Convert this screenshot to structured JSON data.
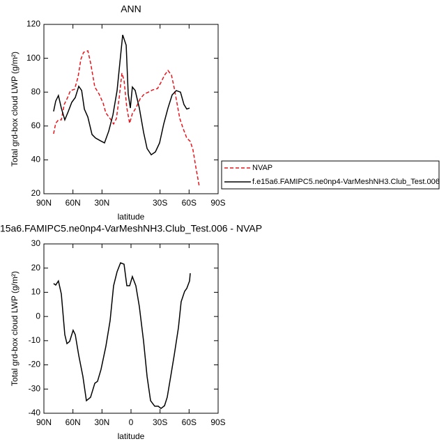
{
  "chart_data": [
    {
      "type": "line",
      "title": "ANN",
      "xlabel": "latitude",
      "ylabel": "Total grd-box cloud LWP (g/m²)",
      "xlim": [
        90,
        -90
      ],
      "ylim": [
        20,
        120
      ],
      "xticks": [
        {
          "value": 90,
          "label": "90N"
        },
        {
          "value": 60,
          "label": "60N"
        },
        {
          "value": 30,
          "label": "30N"
        },
        {
          "value": -30,
          "label": "30S"
        },
        {
          "value": -60,
          "label": "60S"
        },
        {
          "value": -90,
          "label": "90S"
        }
      ],
      "yticks": [
        20,
        40,
        60,
        80,
        100,
        120
      ],
      "legend": "right",
      "series": [
        {
          "name": "NVAP",
          "color": "#e8141c",
          "line_style": "dashed",
          "x": [
            80,
            77.8,
            75,
            72,
            69,
            65.5,
            62.6,
            58.3,
            54.7,
            51.8,
            49,
            44.6,
            41.8,
            37.4,
            33,
            28.8,
            26,
            21.6,
            18,
            15.1,
            12.2,
            9.4,
            7.2,
            4.3,
            1.4,
            -1.4,
            -5,
            -9.4,
            -13.7,
            -18,
            -22.3,
            -27.4,
            -31,
            -34.6,
            -38.2,
            -41.8,
            -44.6,
            -47.5,
            -50.4,
            -54,
            -57.6,
            -61.2,
            -64,
            -67,
            -70.6
          ],
          "values": [
            55.4,
            61.6,
            63.6,
            63.6,
            72.7,
            76.8,
            80.9,
            81.7,
            89,
            99.4,
            103.5,
            104.4,
            97.4,
            83,
            78.9,
            73.5,
            67.7,
            64.4,
            61.2,
            64.4,
            76.8,
            91.2,
            87,
            70.6,
            61.6,
            67.3,
            70.6,
            76,
            78.9,
            80,
            81.3,
            82.1,
            85.8,
            90,
            92.8,
            90,
            82.6,
            73.5,
            64.4,
            58.3,
            52.9,
            50.9,
            46,
            35.6,
            24.1
          ]
        },
        {
          "name": "f.e15a6.FAMIPC5.ne0np4-VarMeshNH3.Club_Test.006",
          "color": "#000000",
          "line_style": "solid",
          "x": [
            80,
            77.8,
            75,
            72,
            68.4,
            64.8,
            61.2,
            57.6,
            54,
            51,
            48.2,
            44.6,
            40.3,
            36.7,
            31.7,
            27.4,
            23,
            18.7,
            14.4,
            11.5,
            8.6,
            5,
            2.9,
            0.7,
            -1.4,
            -4.3,
            -8.6,
            -13,
            -16.6,
            -20.9,
            -25.2,
            -29.5,
            -33.8,
            -38.2,
            -42.5,
            -46.8,
            -51.1,
            -54.7,
            -57.6,
            -60.5
          ],
          "values": [
            68.6,
            74.7,
            78,
            70.6,
            63.6,
            68.6,
            74,
            76.8,
            83.4,
            81,
            70,
            65.3,
            55,
            52.9,
            51.3,
            50,
            57,
            66.5,
            80.9,
            97.4,
            113.8,
            107.7,
            78.9,
            70.6,
            83,
            81,
            70.6,
            56.2,
            46.7,
            43,
            44.7,
            50,
            61.2,
            70.6,
            78.4,
            80.9,
            80,
            72.7,
            70,
            70.6
          ]
        }
      ]
    },
    {
      "type": "line",
      "title": "15a6.FAMIPC5.ne0np4-VarMeshNH3.Club_Test.006 - NVAP",
      "xlabel": "latitude",
      "ylabel": "Total grd-box cloud LWP (g/m²)",
      "xlim": [
        90,
        -90
      ],
      "ylim": [
        -40,
        30
      ],
      "xticks": [
        {
          "value": 90,
          "label": "90N"
        },
        {
          "value": 60,
          "label": "60N"
        },
        {
          "value": 30,
          "label": "30N"
        },
        {
          "value": 0,
          "label": "0"
        },
        {
          "value": -30,
          "label": "30S"
        },
        {
          "value": -60,
          "label": "60S"
        },
        {
          "value": -90,
          "label": "90S"
        }
      ],
      "yticks": [
        -40,
        -30,
        -20,
        -10,
        0,
        10,
        20,
        30
      ],
      "series": [
        {
          "color": "#000000",
          "line_style": "solid",
          "x": [
            80,
            77.8,
            75,
            72,
            68.4,
            66.2,
            63.4,
            59.8,
            57.6,
            54,
            49.7,
            46.1,
            41.8,
            37.4,
            34.6,
            31,
            26,
            21.6,
            18,
            14.4,
            10.8,
            7.2,
            4.3,
            1.4,
            -1.4,
            -5,
            -8.6,
            -13,
            -16.6,
            -20.2,
            -24.5,
            -28.1,
            -31,
            -34.6,
            -37.4,
            -41,
            -44.6,
            -49,
            -51.8,
            -55.4,
            -57.6,
            -60.5,
            -61.2
          ],
          "values": [
            13.6,
            13,
            14.7,
            9.3,
            -7.5,
            -11.2,
            -10.3,
            -5.7,
            -7.5,
            -16.1,
            -24.8,
            -34.8,
            -33.4,
            -27.6,
            -26.8,
            -21.9,
            -12.4,
            -1.7,
            12.7,
            18.5,
            22.2,
            21.6,
            12.7,
            12.7,
            16.5,
            12.7,
            4.1,
            -10.3,
            -24.8,
            -34.8,
            -37.1,
            -37.1,
            -38,
            -36.9,
            -33.4,
            -24.8,
            -16.1,
            -4.6,
            6.1,
            10.4,
            11.6,
            14.7,
            17.9
          ]
        }
      ]
    }
  ]
}
